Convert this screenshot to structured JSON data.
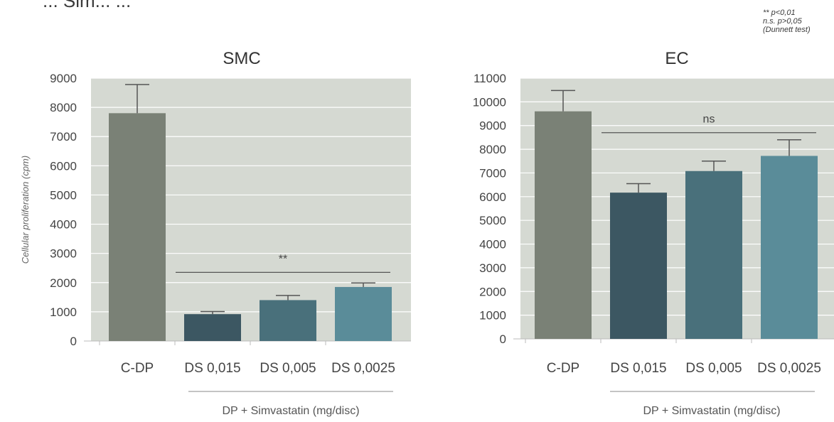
{
  "header": {
    "text": "... Sim... ..."
  },
  "stats_note": {
    "lines": [
      "** p<0,01",
      "n.s. p>0,05",
      "(Dunnett test)"
    ]
  },
  "colors": {
    "plot_bg": "#d5d9d2",
    "grid": "#ffffff",
    "bars": [
      "#7a8176",
      "#3c5762",
      "#49707b",
      "#5a8c99"
    ],
    "error_bar": "#555555",
    "annotation_line": "#555555"
  },
  "chart_data": [
    {
      "type": "bar",
      "title": "SMC",
      "ylabel": "Cellular proliferation (cpm)",
      "categories": [
        "C-DP",
        "DS 0,015",
        "DS 0,005",
        "DS 0,0025"
      ],
      "values": [
        7800,
        920,
        1400,
        1850
      ],
      "errors": [
        980,
        90,
        160,
        140
      ],
      "ylim": [
        0,
        9000
      ],
      "yticks": [
        0,
        1000,
        2000,
        3000,
        4000,
        5000,
        6000,
        7000,
        8000,
        9000
      ],
      "grid": true,
      "significance": {
        "label": "**",
        "level": 2350,
        "from_category": 1,
        "to_category": 3
      },
      "group_label": "DP + Simvastatin (mg/disc)"
    },
    {
      "type": "bar",
      "title": "EC",
      "ylabel": "",
      "categories": [
        "C-DP",
        "DS 0,015",
        "DS 0,005",
        "DS 0,0025"
      ],
      "values": [
        9600,
        6170,
        7080,
        7720
      ],
      "errors": [
        880,
        380,
        420,
        680
      ],
      "ylim": [
        0,
        11000
      ],
      "yticks": [
        0,
        1000,
        2000,
        3000,
        4000,
        5000,
        6000,
        7000,
        8000,
        9000,
        10000,
        11000
      ],
      "grid": true,
      "significance": {
        "label": "ns",
        "level": 8700,
        "from_category": 1,
        "to_category": 3
      },
      "group_label": "DP + Simvastatin (mg/disc)"
    }
  ]
}
